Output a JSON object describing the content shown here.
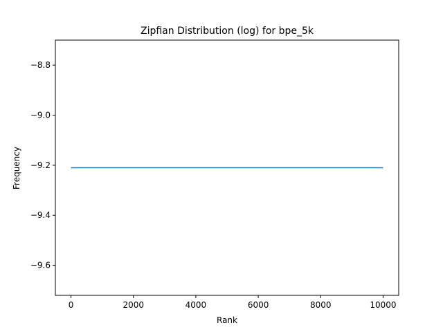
{
  "chart_data": {
    "type": "line",
    "title": "Zipfian Distribution (log) for bpe_5k",
    "xlabel": "Rank",
    "ylabel": "Frequency",
    "xlim": [
      -500,
      10500
    ],
    "ylim": [
      -9.72,
      -8.7
    ],
    "xticks": [
      0,
      2000,
      4000,
      6000,
      8000,
      10000
    ],
    "xtick_labels": [
      "0",
      "2000",
      "4000",
      "6000",
      "8000",
      "10000"
    ],
    "yticks": [
      -8.8,
      -9.0,
      -9.2,
      -9.4,
      -9.6
    ],
    "ytick_labels": [
      "−8.8",
      "−9.0",
      "−9.2",
      "−9.4",
      "−9.6"
    ],
    "grid": false,
    "series": [
      {
        "color": "#1f77b4",
        "x": [
          0,
          10000
        ],
        "y": [
          -9.21,
          -9.21
        ]
      }
    ]
  }
}
